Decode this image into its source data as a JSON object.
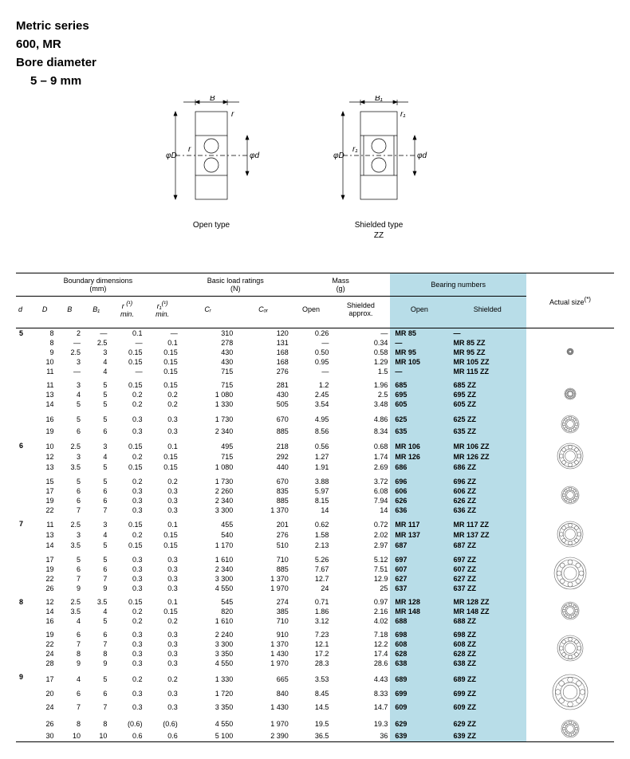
{
  "header": {
    "line1": "Metric series",
    "line2": "600, MR",
    "line3": "Bore diameter",
    "line4": "5 – 9 mm"
  },
  "diagrams": {
    "left_caption_l1": "Open type",
    "left_caption_l2": "",
    "right_caption_l1": "Shielded type",
    "right_caption_l2": "ZZ",
    "labels": {
      "B": "B",
      "B1": "B₁",
      "r": "r",
      "r1": "r₁",
      "phiD": "φD",
      "phid": "φd"
    }
  },
  "table": {
    "headers": {
      "boundary": "Boundary dimensions",
      "boundary_unit": "(mm)",
      "load": "Basic load ratings",
      "load_unit": "(N)",
      "mass": "Mass",
      "mass_unit": "(g)",
      "bearing": "Bearing numbers",
      "actual": "Actual size",
      "actual_sup": "(*)",
      "d": "d",
      "D": "D",
      "B": "B",
      "B1": "B₁",
      "r": "r",
      "r_sup": "(¹)",
      "r_min": "min.",
      "r1": "r₁",
      "r1_sup": "(¹)",
      "r1_min": "min.",
      "Cr": "Cᵣ",
      "Cor": "Cₒᵣ",
      "open": "Open",
      "shield": "Shielded",
      "approx": "approx.",
      "open_b": "Open",
      "shield_b": "Shielded"
    },
    "rows": [
      {
        "d": "5",
        "D": "8",
        "B": "2",
        "B1": "—",
        "r": "0.1",
        "r1": "—",
        "Cr": "310",
        "Cor": "120",
        "mo": "0.26",
        "ms": "—",
        "ob": "MR  85",
        "sb": "—"
      },
      {
        "d": "",
        "D": "8",
        "B": "—",
        "B1": "2.5",
        "r": "—",
        "r1": "0.1",
        "Cr": "278",
        "Cor": "131",
        "mo": "—",
        "ms": "0.34",
        "ob": "—",
        "sb": "MR  85 ZZ"
      },
      {
        "d": "",
        "D": "9",
        "B": "2.5",
        "B1": "3",
        "r": "0.15",
        "r1": "0.15",
        "Cr": "430",
        "Cor": "168",
        "mo": "0.50",
        "ms": "0.58",
        "ob": "MR  95",
        "sb": "MR  95 ZZ"
      },
      {
        "d": "",
        "D": "10",
        "B": "3",
        "B1": "4",
        "r": "0.15",
        "r1": "0.15",
        "Cr": "430",
        "Cor": "168",
        "mo": "0.95",
        "ms": "1.29",
        "ob": "MR 105",
        "sb": "MR 105 ZZ"
      },
      {
        "d": "",
        "D": "11",
        "B": "—",
        "B1": "4",
        "r": "—",
        "r1": "0.15",
        "Cr": "715",
        "Cor": "276",
        "mo": "—",
        "ms": "1.5",
        "ob": "—",
        "sb": "MR 115 ZZ"
      },
      {
        "sep": true,
        "d": "",
        "D": "11",
        "B": "3",
        "B1": "5",
        "r": "0.15",
        "r1": "0.15",
        "Cr": "715",
        "Cor": "281",
        "mo": "1.2",
        "ms": "1.96",
        "ob": "685",
        "sb": "685 ZZ"
      },
      {
        "d": "",
        "D": "13",
        "B": "4",
        "B1": "5",
        "r": "0.2",
        "r1": "0.2",
        "Cr": "1 080",
        "Cor": "430",
        "mo": "2.45",
        "ms": "2.5",
        "ob": "695",
        "sb": "695 ZZ"
      },
      {
        "d": "",
        "D": "14",
        "B": "5",
        "B1": "5",
        "r": "0.2",
        "r1": "0.2",
        "Cr": "1 330",
        "Cor": "505",
        "mo": "3.54",
        "ms": "3.48",
        "ob": "605",
        "sb": "605 ZZ"
      },
      {
        "sep": true,
        "d": "",
        "D": "16",
        "B": "5",
        "B1": "5",
        "r": "0.3",
        "r1": "0.3",
        "Cr": "1 730",
        "Cor": "670",
        "mo": "4.95",
        "ms": "4.86",
        "ob": "625",
        "sb": "625 ZZ"
      },
      {
        "d": "",
        "D": "19",
        "B": "6",
        "B1": "6",
        "r": "0.3",
        "r1": "0.3",
        "Cr": "2 340",
        "Cor": "885",
        "mo": "8.56",
        "ms": "8.34",
        "ob": "635",
        "sb": "635 ZZ"
      },
      {
        "sep": true,
        "d": "6",
        "D": "10",
        "B": "2.5",
        "B1": "3",
        "r": "0.15",
        "r1": "0.1",
        "Cr": "495",
        "Cor": "218",
        "mo": "0.56",
        "ms": "0.68",
        "ob": "MR 106",
        "sb": "MR 106 ZZ"
      },
      {
        "d": "",
        "D": "12",
        "B": "3",
        "B1": "4",
        "r": "0.2",
        "r1": "0.15",
        "Cr": "715",
        "Cor": "292",
        "mo": "1.27",
        "ms": "1.74",
        "ob": "MR 126",
        "sb": "MR 126 ZZ"
      },
      {
        "d": "",
        "D": "13",
        "B": "3.5",
        "B1": "5",
        "r": "0.15",
        "r1": "0.15",
        "Cr": "1 080",
        "Cor": "440",
        "mo": "1.91",
        "ms": "2.69",
        "ob": "686",
        "sb": "686   ZZ"
      },
      {
        "sep": true,
        "d": "",
        "D": "15",
        "B": "5",
        "B1": "5",
        "r": "0.2",
        "r1": "0.2",
        "Cr": "1 730",
        "Cor": "670",
        "mo": "3.88",
        "ms": "3.72",
        "ob": "696",
        "sb": "696 ZZ"
      },
      {
        "d": "",
        "D": "17",
        "B": "6",
        "B1": "6",
        "r": "0.3",
        "r1": "0.3",
        "Cr": "2 260",
        "Cor": "835",
        "mo": "5.97",
        "ms": "6.08",
        "ob": "606",
        "sb": "606 ZZ"
      },
      {
        "d": "",
        "D": "19",
        "B": "6",
        "B1": "6",
        "r": "0.3",
        "r1": "0.3",
        "Cr": "2 340",
        "Cor": "885",
        "mo": "8.15",
        "ms": "7.94",
        "ob": "626",
        "sb": "626 ZZ"
      },
      {
        "d": "",
        "D": "22",
        "B": "7",
        "B1": "7",
        "r": "0.3",
        "r1": "0.3",
        "Cr": "3 300",
        "Cor": "1 370",
        "mo": "14",
        "ms": "14",
        "ob": "636",
        "sb": "636 ZZ"
      },
      {
        "sep": true,
        "d": "7",
        "D": "11",
        "B": "2.5",
        "B1": "3",
        "r": "0.15",
        "r1": "0.1",
        "Cr": "455",
        "Cor": "201",
        "mo": "0.62",
        "ms": "0.72",
        "ob": "MR 117",
        "sb": "MR 117 ZZ"
      },
      {
        "d": "",
        "D": "13",
        "B": "3",
        "B1": "4",
        "r": "0.2",
        "r1": "0.15",
        "Cr": "540",
        "Cor": "276",
        "mo": "1.58",
        "ms": "2.02",
        "ob": "MR 137",
        "sb": "MR 137 ZZ"
      },
      {
        "d": "",
        "D": "14",
        "B": "3.5",
        "B1": "5",
        "r": "0.15",
        "r1": "0.15",
        "Cr": "1 170",
        "Cor": "510",
        "mo": "2.13",
        "ms": "2.97",
        "ob": "687",
        "sb": "687 ZZ"
      },
      {
        "sep": true,
        "d": "",
        "D": "17",
        "B": "5",
        "B1": "5",
        "r": "0.3",
        "r1": "0.3",
        "Cr": "1 610",
        "Cor": "710",
        "mo": "5.26",
        "ms": "5.12",
        "ob": "697",
        "sb": "697 ZZ"
      },
      {
        "d": "",
        "D": "19",
        "B": "6",
        "B1": "6",
        "r": "0.3",
        "r1": "0.3",
        "Cr": "2 340",
        "Cor": "885",
        "mo": "7.67",
        "ms": "7.51",
        "ob": "607",
        "sb": "607 ZZ"
      },
      {
        "d": "",
        "D": "22",
        "B": "7",
        "B1": "7",
        "r": "0.3",
        "r1": "0.3",
        "Cr": "3 300",
        "Cor": "1 370",
        "mo": "12.7",
        "ms": "12.9",
        "ob": "627",
        "sb": "627 ZZ"
      },
      {
        "d": "",
        "D": "26",
        "B": "9",
        "B1": "9",
        "r": "0.3",
        "r1": "0.3",
        "Cr": "4 550",
        "Cor": "1 970",
        "mo": "24",
        "ms": "25",
        "ob": "637",
        "sb": "637 ZZ"
      },
      {
        "sep": true,
        "d": "8",
        "D": "12",
        "B": "2.5",
        "B1": "3.5",
        "r": "0.15",
        "r1": "0.1",
        "Cr": "545",
        "Cor": "274",
        "mo": "0.71",
        "ms": "0.97",
        "ob": "MR 128",
        "sb": "MR 128 ZZ"
      },
      {
        "d": "",
        "D": "14",
        "B": "3.5",
        "B1": "4",
        "r": "0.2",
        "r1": "0.15",
        "Cr": "820",
        "Cor": "385",
        "mo": "1.86",
        "ms": "2.16",
        "ob": "MR 148",
        "sb": "MR 148 ZZ"
      },
      {
        "d": "",
        "D": "16",
        "B": "4",
        "B1": "5",
        "r": "0.2",
        "r1": "0.2",
        "Cr": "1 610",
        "Cor": "710",
        "mo": "3.12",
        "ms": "4.02",
        "ob": "688",
        "sb": "688   ZZ"
      },
      {
        "sep": true,
        "d": "",
        "D": "19",
        "B": "6",
        "B1": "6",
        "r": "0.3",
        "r1": "0.3",
        "Cr": "2 240",
        "Cor": "910",
        "mo": "7.23",
        "ms": "7.18",
        "ob": "698",
        "sb": "698 ZZ"
      },
      {
        "d": "",
        "D": "22",
        "B": "7",
        "B1": "7",
        "r": "0.3",
        "r1": "0.3",
        "Cr": "3 300",
        "Cor": "1 370",
        "mo": "12.1",
        "ms": "12.2",
        "ob": "608",
        "sb": "608 ZZ"
      },
      {
        "d": "",
        "D": "24",
        "B": "8",
        "B1": "8",
        "r": "0.3",
        "r1": "0.3",
        "Cr": "3 350",
        "Cor": "1 430",
        "mo": "17.2",
        "ms": "17.4",
        "ob": "628",
        "sb": "628 ZZ"
      },
      {
        "d": "",
        "D": "28",
        "B": "9",
        "B1": "9",
        "r": "0.3",
        "r1": "0.3",
        "Cr": "4 550",
        "Cor": "1 970",
        "mo": "28.3",
        "ms": "28.6",
        "ob": "638",
        "sb": "638 ZZ"
      },
      {
        "sep": true,
        "d": "9",
        "D": "17",
        "B": "4",
        "B1": "5",
        "r": "0.2",
        "r1": "0.2",
        "Cr": "1 330",
        "Cor": "665",
        "mo": "3.53",
        "ms": "4.43",
        "ob": "689",
        "sb": "689 ZZ"
      },
      {
        "d": "",
        "D": "20",
        "B": "6",
        "B1": "6",
        "r": "0.3",
        "r1": "0.3",
        "Cr": "1 720",
        "Cor": "840",
        "mo": "8.45",
        "ms": "8.33",
        "ob": "699",
        "sb": "699 ZZ"
      },
      {
        "d": "",
        "D": "24",
        "B": "7",
        "B1": "7",
        "r": "0.3",
        "r1": "0.3",
        "Cr": "3 350",
        "Cor": "1 430",
        "mo": "14.5",
        "ms": "14.7",
        "ob": "609",
        "sb": "609 ZZ"
      },
      {
        "sep": true,
        "d": "",
        "D": "26",
        "B": "8",
        "B1": "8",
        "r": "(0.6)",
        "r1": "(0.6)",
        "Cr": "4 550",
        "Cor": "1 970",
        "mo": "19.5",
        "ms": "19.3",
        "ob": "629",
        "sb": "629 ZZ"
      },
      {
        "d": "",
        "D": "30",
        "B": "10",
        "B1": "10",
        "r": "0.6",
        "r1": "0.6",
        "Cr": "5 100",
        "Cor": "2 390",
        "mo": "36.5",
        "ms": "36",
        "ob": "639",
        "sb": "639 ZZ"
      }
    ],
    "bearing_sizes": [
      8,
      14,
      22,
      32,
      22,
      32,
      40,
      22,
      32,
      44,
      22,
      36,
      44,
      24,
      40
    ]
  },
  "style": {
    "hl_color": "#b8dde8",
    "line_color": "#000000",
    "text_color": "#000000",
    "bg_color": "#ffffff"
  }
}
